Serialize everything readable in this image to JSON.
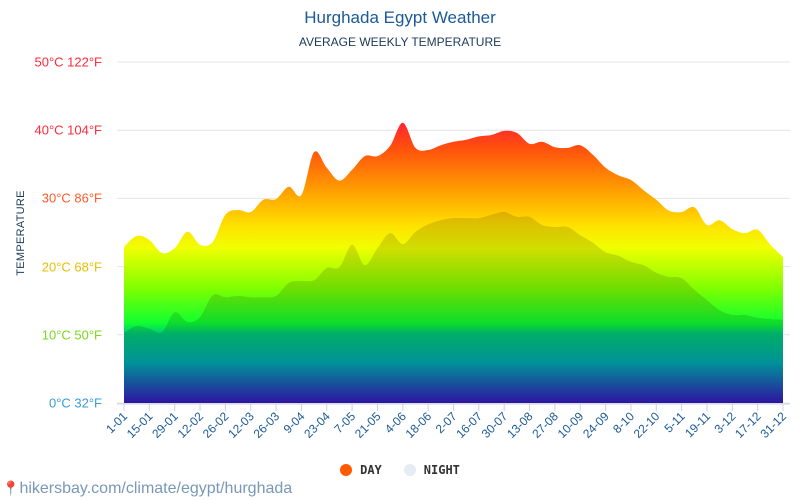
{
  "header": {
    "title": "Hurghada Egypt Weather",
    "subtitle": "AVERAGE WEEKLY TEMPERATURE"
  },
  "footer": {
    "url": "hikersbay.com/climate/egypt/hurghada",
    "icon": "map-pin-icon"
  },
  "chart_data": {
    "type": "area",
    "title": "Hurghada Egypt Weather",
    "subtitle": "AVERAGE WEEKLY TEMPERATURE",
    "ylabel": "TEMPERATURE",
    "ylim": [
      0,
      50
    ],
    "grid": true,
    "legend_placement": "bottom",
    "y_ticks": [
      {
        "value": 0,
        "label": "0°C 32°F",
        "color": "#3a9ad8"
      },
      {
        "value": 10,
        "label": "10°C 50°F",
        "color": "#7ad81e"
      },
      {
        "value": 20,
        "label": "20°C 68°F",
        "color": "#e8c000"
      },
      {
        "value": 30,
        "label": "30°C 86°F",
        "color": "#ff5a2a"
      },
      {
        "value": 40,
        "label": "40°C 104°F",
        "color": "#ff2a3a"
      },
      {
        "value": 50,
        "label": "50°C 122°F",
        "color": "#ff2a3a"
      }
    ],
    "x_tick_labels": [
      "1-01",
      "15-01",
      "29-01",
      "12-02",
      "26-02",
      "12-03",
      "26-03",
      "9-04",
      "23-04",
      "7-05",
      "21-05",
      "4-06",
      "18-06",
      "2-07",
      "16-07",
      "30-07",
      "13-08",
      "27-08",
      "10-09",
      "24-09",
      "8-10",
      "22-10",
      "5-11",
      "19-11",
      "3-12",
      "17-12",
      "31-12"
    ],
    "series": [
      {
        "name": "DAY",
        "color": "#ff5a00",
        "values": [
          22.9,
          24.5,
          23.9,
          22.0,
          22.7,
          25.1,
          23.2,
          23.6,
          27.6,
          28.3,
          28.0,
          29.8,
          29.9,
          31.7,
          30.5,
          36.8,
          34.5,
          32.6,
          34.2,
          36.2,
          36.2,
          37.7,
          41.1,
          37.4,
          37.1,
          37.8,
          38.3,
          38.6,
          39.1,
          39.3,
          39.9,
          39.6,
          38.0,
          38.3,
          37.5,
          37.4,
          37.8,
          36.4,
          34.5,
          33.4,
          32.7,
          31.2,
          29.8,
          28.2,
          28.0,
          28.7,
          26.1,
          26.8,
          25.5,
          24.9,
          25.4,
          23.2,
          21.4
        ]
      },
      {
        "name": "NIGHT",
        "color": "#e6ecf4",
        "values": [
          10.3,
          11.3,
          10.9,
          10.4,
          13.3,
          11.9,
          12.6,
          15.8,
          15.5,
          15.7,
          15.5,
          15.5,
          15.7,
          17.6,
          17.9,
          18.0,
          19.8,
          19.9,
          23.2,
          20.2,
          22.7,
          24.9,
          23.3,
          25.1,
          26.2,
          26.8,
          27.1,
          27.1,
          27.1,
          27.6,
          28.0,
          27.3,
          27.3,
          26.1,
          25.8,
          25.8,
          24.6,
          23.5,
          22.1,
          21.6,
          20.7,
          20.2,
          19.1,
          18.5,
          18.3,
          16.6,
          15.1,
          13.6,
          12.9,
          12.9,
          12.5,
          12.3,
          12.2
        ]
      }
    ]
  }
}
